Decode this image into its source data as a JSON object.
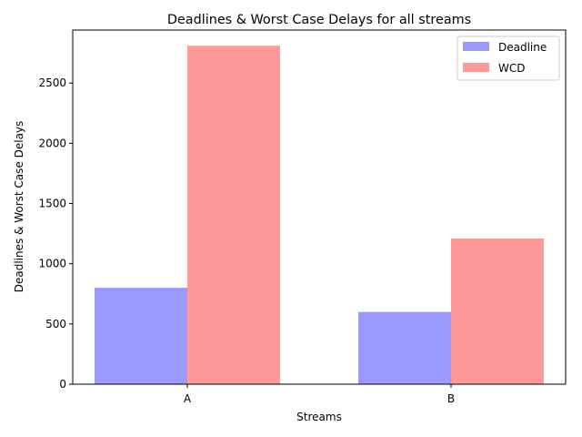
{
  "chart_data": {
    "type": "bar",
    "title": "Deadlines & Worst Case Delays for all streams",
    "xlabel": "Streams",
    "ylabel": "Deadlines & Worst Case Delays",
    "categories": [
      "A",
      "B"
    ],
    "series": [
      {
        "name": "Deadline",
        "values": [
          800,
          600
        ],
        "color": "#9999ff"
      },
      {
        "name": "WCD",
        "values": [
          2810,
          1210
        ],
        "color": "#ff9999"
      }
    ],
    "ylim": [
      0,
      2940
    ],
    "yticks": [
      0,
      500,
      1000,
      1500,
      2000,
      2500
    ],
    "legend": "top-right",
    "grid": false
  }
}
